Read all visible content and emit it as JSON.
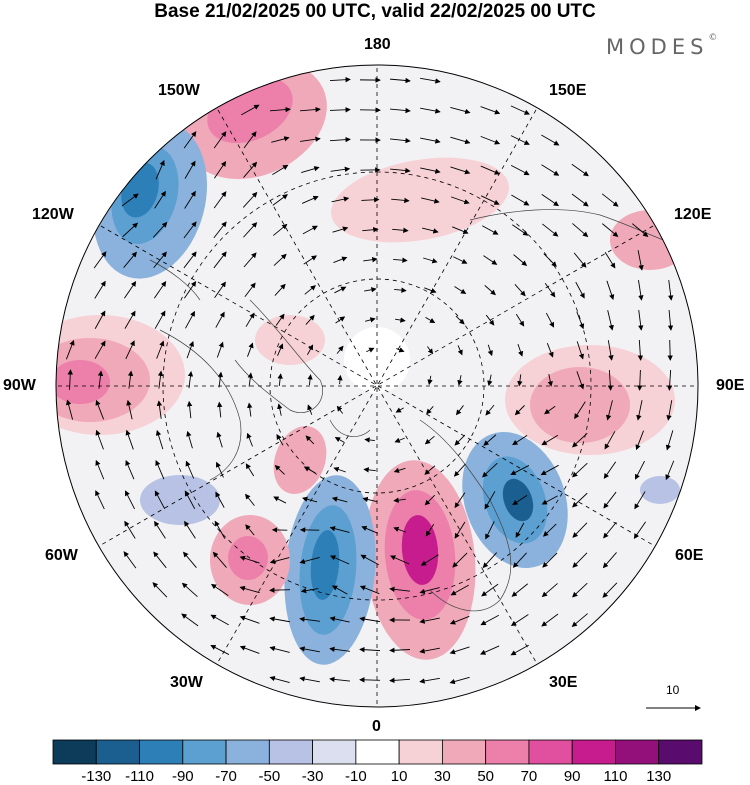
{
  "title": "Base 21/02/2025 00 UTC, valid 22/02/2025 00 UTC",
  "brand": "MODES",
  "brand_mark": "©",
  "map": {
    "projection": "north-polar-stereographic",
    "meridian_labels": [
      "180",
      "150E",
      "120E",
      "90E",
      "60E",
      "30E",
      "0",
      "30W",
      "60W",
      "90W",
      "120W",
      "150W"
    ]
  },
  "vector_scale": {
    "label": "10"
  },
  "colorbar": {
    "colors": [
      "#0c3c5a",
      "#1a5f8f",
      "#2d7fb8",
      "#5c9fd1",
      "#8ab2dc",
      "#b7c2e4",
      "#dcdff0",
      "#ffffff",
      "#f6d1d6",
      "#f0a9b9",
      "#ec80ab",
      "#e0509f",
      "#c61c8d",
      "#93107a",
      "#5a0b6e"
    ],
    "ticks": [
      "-130",
      "-110",
      "-90",
      "-70",
      "-50",
      "-30",
      "-10",
      "10",
      "30",
      "50",
      "70",
      "90",
      "110",
      "130"
    ]
  }
}
